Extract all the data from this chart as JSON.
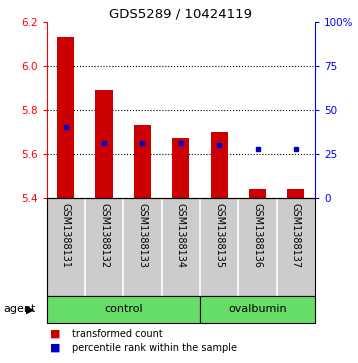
{
  "title": "GDS5289 / 10424119",
  "samples": [
    "GSM1388131",
    "GSM1388132",
    "GSM1388133",
    "GSM1388134",
    "GSM1388135",
    "GSM1388136",
    "GSM1388137"
  ],
  "bar_bottom": 5.4,
  "transformed_counts": [
    6.13,
    5.89,
    5.73,
    5.67,
    5.7,
    5.44,
    5.44
  ],
  "percentile_values": [
    5.72,
    5.65,
    5.65,
    5.65,
    5.64,
    5.62,
    5.62
  ],
  "groups": [
    "control",
    "control",
    "control",
    "control",
    "ovalbumin",
    "ovalbumin",
    "ovalbumin"
  ],
  "bar_color": "#CC0000",
  "percentile_color": "#0000CC",
  "left_ylim": [
    5.4,
    6.2
  ],
  "right_ylim": [
    0,
    100
  ],
  "left_yticks": [
    5.4,
    5.6,
    5.8,
    6.0,
    6.2
  ],
  "right_yticks": [
    0,
    25,
    50,
    75,
    100
  ],
  "right_yticklabels": [
    "0",
    "25",
    "50",
    "75",
    "100%"
  ],
  "legend_items": [
    "transformed count",
    "percentile rank within the sample"
  ],
  "background_color": "#ffffff",
  "sample_area_color": "#cccccc",
  "green_color": "#66dd66",
  "bar_width": 0.45
}
